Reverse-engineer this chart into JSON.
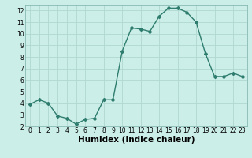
{
  "x": [
    0,
    1,
    2,
    3,
    4,
    5,
    6,
    7,
    8,
    9,
    10,
    11,
    12,
    13,
    14,
    15,
    16,
    17,
    18,
    19,
    20,
    21,
    22,
    23
  ],
  "y": [
    3.9,
    4.3,
    4.0,
    2.9,
    2.7,
    2.2,
    2.6,
    2.7,
    4.3,
    4.3,
    8.5,
    10.5,
    10.4,
    10.2,
    11.5,
    12.2,
    12.2,
    11.85,
    11.0,
    8.3,
    6.3,
    6.3,
    6.6,
    6.3
  ],
  "line_color": "#2e7d6e",
  "marker": "D",
  "marker_size": 2.0,
  "bg_color": "#cceee8",
  "grid_color": "#b0d8d0",
  "xlabel": "Humidex (Indice chaleur)",
  "xlim": [
    -0.5,
    23.5
  ],
  "ylim": [
    2,
    12.5
  ],
  "yticks": [
    2,
    3,
    4,
    5,
    6,
    7,
    8,
    9,
    10,
    11,
    12
  ],
  "xticks": [
    0,
    1,
    2,
    3,
    4,
    5,
    6,
    7,
    8,
    9,
    10,
    11,
    12,
    13,
    14,
    15,
    16,
    17,
    18,
    19,
    20,
    21,
    22,
    23
  ],
  "tick_fontsize": 5.5,
  "xlabel_fontsize": 7.5,
  "line_width": 1.0
}
